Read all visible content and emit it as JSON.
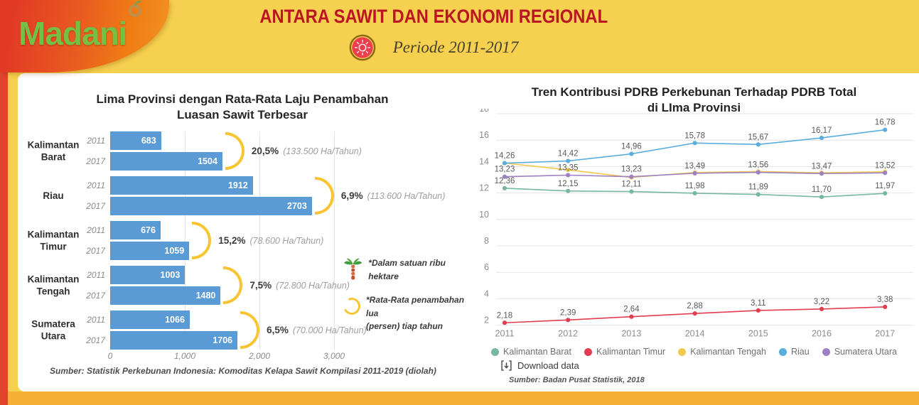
{
  "header": {
    "logo_text": "Madani",
    "title": "ANTARA SAWIT DAN EKONOMI REGIONAL",
    "subtitle": "Periode 2011-2017"
  },
  "left_chart": {
    "title_line1": "Lima Provinsi dengan Rata-Rata Laju Penambahan",
    "title_line2": "Luasan Sawit Terbesar",
    "chart_data": {
      "type": "bar",
      "orientation": "horizontal",
      "years": [
        "2011",
        "2017"
      ],
      "xlim": [
        0,
        3000
      ],
      "x_ticks": [
        0,
        1000,
        2000,
        3000
      ],
      "x_tick_labels": [
        "0",
        "1,000",
        "2,000",
        "3,000"
      ],
      "bar_color": "#5b9bd5",
      "groups": [
        {
          "province_lines": [
            "Kalimantan",
            "Barat"
          ],
          "v2011": 683,
          "v2017": 1504,
          "growth_pct": "20,5%",
          "growth_rate": "(133.500 Ha/Tahun)"
        },
        {
          "province_lines": [
            "Riau"
          ],
          "v2011": 1912,
          "v2017": 2703,
          "growth_pct": "6,9%",
          "growth_rate": "(113.600 Ha/Tahun)"
        },
        {
          "province_lines": [
            "Kalimantan",
            "Timur"
          ],
          "v2011": 676,
          "v2017": 1059,
          "growth_pct": "15,2%",
          "growth_rate": "(78.600 Ha/Tahun)"
        },
        {
          "province_lines": [
            "Kalimantan",
            "Tengah"
          ],
          "v2011": 1003,
          "v2017": 1480,
          "growth_pct": "7,5%",
          "growth_rate": "(72.800 Ha/Tahun)"
        },
        {
          "province_lines": [
            "Sumatera",
            "Utara"
          ],
          "v2011": 1066,
          "v2017": 1706,
          "growth_pct": "6,5%",
          "growth_rate": "(70.000 Ha/Tahun)"
        }
      ]
    },
    "notes": {
      "note1_text": "*Dalam satuan ribu hektare",
      "note2_line1": "*Rata-Rata penambahan lua",
      "note2_line2": "(persen) tiap tahun"
    },
    "source": "Sumber: Statistik Perkebunan Indonesia: Komoditas Kelapa Sawit Kompilasi 2011-2019 (diolah)"
  },
  "right_chart": {
    "title_line1": "Tren Kontribusi PDRB Perkebunan Terhadap PDRB Total",
    "title_line2": "di LIma Provinsi",
    "chart_data": {
      "type": "line",
      "x": [
        2011,
        2012,
        2013,
        2014,
        2015,
        2016,
        2017
      ],
      "ylim": [
        2,
        18
      ],
      "y_ticks": [
        2,
        4,
        6,
        8,
        10,
        12,
        14,
        16,
        18
      ],
      "grid": true,
      "legend_position": "bottom",
      "series": [
        {
          "name": "Kalimantan Barat",
          "color": "#76b8a4",
          "values": [
            12.36,
            12.15,
            12.11,
            11.98,
            11.89,
            11.7,
            11.97
          ],
          "labels": [
            "12,36",
            "12,15",
            "12,11",
            "11,98",
            "11,89",
            "11,70",
            "11,97"
          ]
        },
        {
          "name": "Kalimantan Timur",
          "color": "#e23c4f",
          "values": [
            2.18,
            2.39,
            2.64,
            2.88,
            3.11,
            3.22,
            3.38
          ],
          "labels": [
            "2,18",
            "2,39",
            "2,64",
            "2,88",
            "3,11",
            "3,22",
            "3,38"
          ]
        },
        {
          "name": "Kalimantan Tengah",
          "color": "#f2c84e",
          "values": [
            14.26,
            13.75,
            13.18,
            13.55,
            13.62,
            13.53,
            13.6
          ],
          "labels": []
        },
        {
          "name": "Riau",
          "color": "#5aaede",
          "values": [
            14.26,
            14.42,
            14.96,
            15.78,
            15.67,
            16.17,
            16.78
          ],
          "labels": [
            "14,26",
            "14,42",
            "14,96",
            "15,78",
            "15,67",
            "16,17",
            "16,78"
          ]
        },
        {
          "name": "Sumatera Utara",
          "color": "#9d80c4",
          "values": [
            13.23,
            13.35,
            13.23,
            13.49,
            13.56,
            13.47,
            13.52
          ],
          "labels": [
            "13,23",
            "13,35",
            "13,23",
            "13,49",
            "13,56",
            "13,47",
            "13,52"
          ]
        }
      ]
    },
    "download_label": "Download data",
    "source": "Sumber: Badan Pusat Statistik, 2018"
  }
}
